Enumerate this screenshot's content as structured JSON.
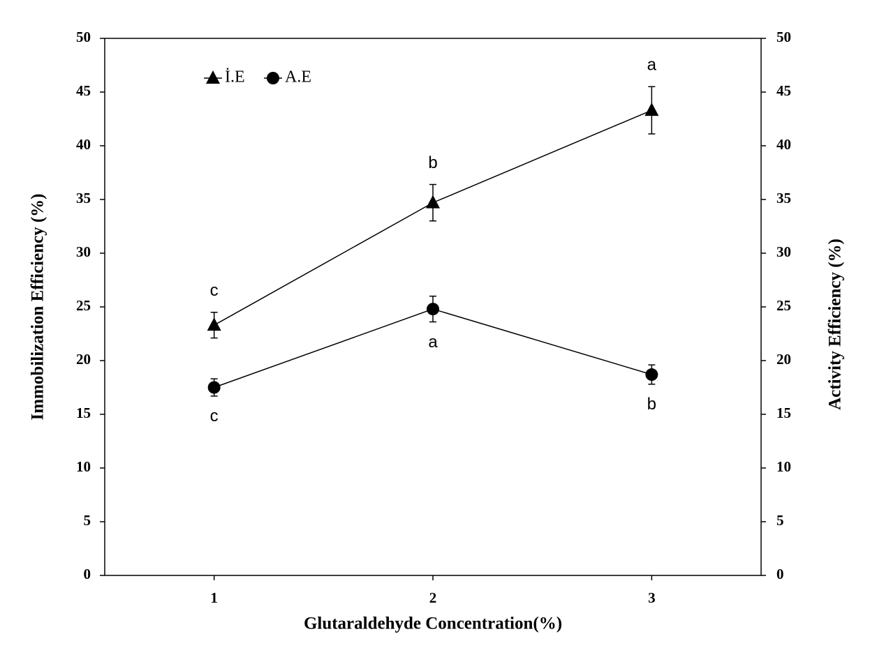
{
  "chart_data": {
    "type": "line",
    "x_label": "Glutaraldehyde Concentration(%)",
    "y_label": "Immobilization Efficiency (%)",
    "y2_label": "Activity Efficiency (%)",
    "x": [
      1,
      2,
      3
    ],
    "xlim": [
      0.5,
      3.5
    ],
    "xticks": [
      1,
      2,
      3
    ],
    "ylim": [
      0,
      50
    ],
    "yticks": [
      0,
      5,
      10,
      15,
      20,
      25,
      30,
      35,
      40,
      45,
      50
    ],
    "y2lim": [
      0,
      50
    ],
    "y2ticks": [
      0,
      5,
      10,
      15,
      20,
      25,
      30,
      35,
      40,
      45,
      50
    ],
    "legend": "upper left",
    "series": [
      {
        "name": "İ.E",
        "color": "#000000",
        "marker": "triangle",
        "values": [
          23.3,
          34.7,
          43.3
        ],
        "errors": [
          1.2,
          1.7,
          2.2
        ],
        "annotations": [
          "c",
          "b",
          "a"
        ]
      },
      {
        "name": "A.E",
        "color": "#000000",
        "marker": "circle",
        "axis": "y2",
        "values": [
          17.5,
          24.8,
          18.7
        ],
        "errors": [
          0.8,
          1.2,
          0.9
        ],
        "annotations": [
          "c",
          "a",
          "b"
        ]
      }
    ]
  }
}
